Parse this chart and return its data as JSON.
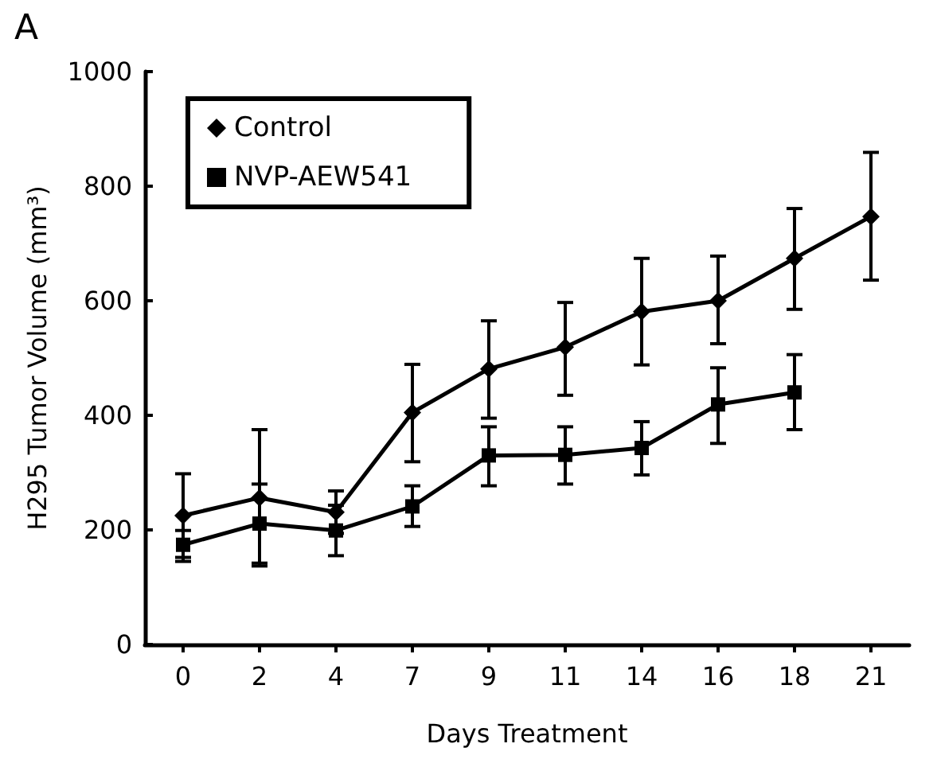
{
  "chart_data": {
    "type": "line",
    "title": "A",
    "xlabel": "Days Treatment",
    "ylabel": "H295 Tumor Volume (mm³)",
    "categories": [
      "0",
      "2",
      "4",
      "7",
      "9",
      "11",
      "14",
      "16",
      "18",
      "21"
    ],
    "series": [
      {
        "name": "Control",
        "color": "#000000",
        "marker": "diamond",
        "values": [
          225,
          256,
          231,
          405,
          481,
          519,
          581,
          600,
          674,
          747
        ],
        "errors": [
          [
            152,
            298
          ],
          [
            137,
            375
          ],
          [
            194,
            268
          ],
          [
            319,
            489
          ],
          [
            395,
            565
          ],
          [
            435,
            597
          ],
          [
            488,
            674
          ],
          [
            525,
            678
          ],
          [
            585,
            761
          ],
          [
            636,
            859
          ]
        ]
      },
      {
        "name": "NVP-AEW541",
        "color": "#000000",
        "marker": "square",
        "values": [
          174,
          211,
          199,
          241,
          330,
          331,
          343,
          419,
          440,
          null
        ],
        "errors": [
          [
            145,
            199
          ],
          [
            142,
            280
          ],
          [
            155,
            243
          ],
          [
            206,
            277
          ],
          [
            277,
            380
          ],
          [
            280,
            380
          ],
          [
            296,
            389
          ],
          [
            351,
            483
          ],
          [
            375,
            506
          ],
          null
        ]
      }
    ],
    "ylim": [
      0,
      1000
    ],
    "yticks": [
      0,
      200,
      400,
      600,
      800,
      1000
    ],
    "grid": false,
    "legend": "top left",
    "line_style": "solid"
  }
}
